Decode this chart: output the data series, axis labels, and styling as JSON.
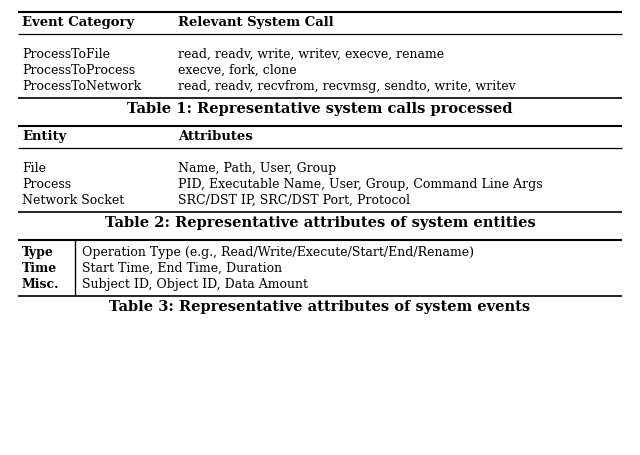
{
  "table1": {
    "header": [
      "Event Category",
      "Relevant System Call"
    ],
    "rows": [
      [
        "ProcessToFile",
        "read, readv, write, writev, execve, rename"
      ],
      [
        "ProcessToProcess",
        "execve, fork, clone"
      ],
      [
        "ProcessToNetwork",
        "read, readv, recvfrom, recvmsg, sendto, write, writev"
      ]
    ],
    "caption": "Table 1: Representative system calls processed"
  },
  "table2": {
    "header": [
      "Entity",
      "Attributes"
    ],
    "rows": [
      [
        "File",
        "Name, Path, User, Group"
      ],
      [
        "Process",
        "PID, Executable Name, User, Group, Command Line Args"
      ],
      [
        "Network Socket",
        "SRC/DST IP, SRC/DST Port, Protocol"
      ]
    ],
    "caption": "Table 2: Representative attributes of system entities"
  },
  "table3": {
    "col1": [
      "Type",
      "Time",
      "Misc."
    ],
    "col2": [
      "Operation Type (e.g., Read/Write/Execute/Start/End/Rename)",
      "Start Time, End Time, Duration",
      "Subject ID, Object ID, Data Amount"
    ],
    "caption": "Table 3: Representative attributes of system events"
  },
  "bg_color": "#ffffff",
  "line_color": "#000000",
  "text_color": "#000000",
  "header_fontsize": 9.5,
  "body_fontsize": 9.0,
  "caption_fontsize": 10.5
}
